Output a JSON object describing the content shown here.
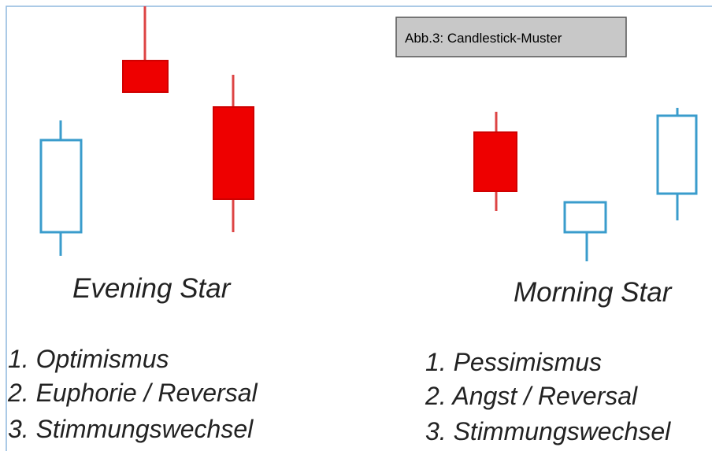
{
  "caption": "Abb.3:  Candlestick-Muster",
  "evening_star": {
    "label": "Evening Star",
    "items": [
      "1. Optimismus",
      "2. Euphorie / Reversal",
      "3. Stimmungswechsel"
    ]
  },
  "morning_star": {
    "label": "Morning Star",
    "items": [
      "1. Pessimismus",
      "2. Angst / Reversal",
      "3. Stimmungswechsel"
    ]
  }
}
